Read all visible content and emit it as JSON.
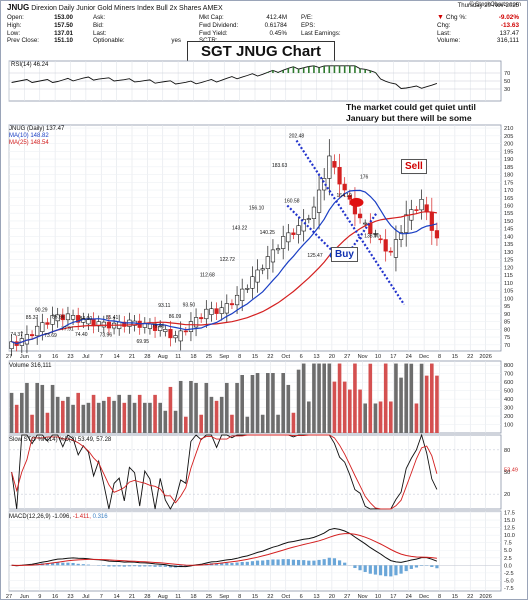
{
  "header": {
    "symbol": "JNUG",
    "description": "Direxion Daily Junior Gold Miners Index Bull 2x Shares",
    "exchange": "AMEX",
    "watermark": "© StockCharts.com",
    "col1": [
      {
        "k": "Open:",
        "v": "153.00"
      },
      {
        "k": "High:",
        "v": "157.50"
      },
      {
        "k": "Low:",
        "v": "137.01"
      },
      {
        "k": "Prev Close:",
        "v": "151.10"
      }
    ],
    "col2": [
      {
        "k": "Ask:",
        "v": ""
      },
      {
        "k": "Bid:",
        "v": ""
      },
      {
        "k": "Last:",
        "v": ""
      },
      {
        "k": "Optionable:",
        "v": "yes"
      }
    ],
    "col3": [
      {
        "k": "Mkt Cap:",
        "v": "412.4M"
      },
      {
        "k": "Fwd Dividend:",
        "v": "0.61784"
      },
      {
        "k": "Fwd Yield:",
        "v": "0.45%"
      },
      {
        "k": "SCTR:",
        "v": ""
      }
    ],
    "col4": [
      {
        "k": "P/E:",
        "v": ""
      },
      {
        "k": "EPS:",
        "v": ""
      },
      {
        "k": "Last Earnings:",
        "v": ""
      }
    ],
    "quote": {
      "date": "Thursday 20-Nov-2025",
      "rows": [
        {
          "k": "Chg %:",
          "v": "-9.02%"
        },
        {
          "k": "Chg:",
          "v": "-13.63"
        },
        {
          "k": "Last:",
          "v": "137.47"
        },
        {
          "k": "Volume:",
          "v": "316,111"
        }
      ]
    }
  },
  "title_box": "SGT JNUG Chart",
  "annotation": "The market could get quiet until January but there will be some good trading opportunities.",
  "callouts": {
    "sell": "Sell",
    "buy": "Buy"
  },
  "panel_labels": {
    "rsi": "RSI(14) 46.24",
    "price": "JNUG (Daily) 137.47",
    "ma10": "MA(10) 148.82",
    "ma25": "MA(25) 148.54",
    "volume": "Volume 316,111",
    "sto": "Slow STO %K(14) %D(3) 53.49, 57.28",
    "macd_prefix": "MACD(12,26,9) -1.096,",
    "macd_signal": "-1.411,",
    "macd_hist": "0.316"
  },
  "colors": {
    "up": "#1a1a1a",
    "down": "#d42020",
    "ma10": "#1a3fc4",
    "ma25": "#d42020",
    "trend": "#2233cc",
    "rsi_fill": "#2f7a2f"
  },
  "chart_data": {
    "type": "candlestick",
    "symbol": "JNUG",
    "x_labels": [
      "27",
      "Jun",
      "9",
      "16",
      "23",
      "Jul",
      "7",
      "14",
      "21",
      "28",
      "Aug",
      "11",
      "18",
      "25",
      "Sep",
      "8",
      "15",
      "22",
      "Oct",
      "6",
      "13",
      "20",
      "27",
      "Nov",
      "10",
      "17",
      "24",
      "Dec",
      "8",
      "15",
      "22",
      "2026"
    ],
    "price_ticks": [
      210,
      205,
      200,
      195,
      190,
      185,
      180,
      175,
      170,
      165,
      160,
      155,
      150,
      145,
      140,
      135,
      130,
      125,
      120,
      115,
      110,
      105,
      100,
      95,
      90,
      85,
      80,
      75,
      70
    ],
    "ylim": [
      66,
      212
    ],
    "close_weekly": [
      72,
      80,
      87,
      88,
      85,
      83,
      82,
      84,
      82,
      80,
      74,
      83,
      91,
      92,
      100,
      112,
      125,
      138,
      145,
      157,
      190,
      168,
      150,
      140,
      128,
      152,
      162,
      137
    ],
    "price_labels": [
      {
        "t": "74.37",
        "x": 0,
        "y": 74.37
      },
      {
        "t": "85.37",
        "x": 1,
        "y": 85.37
      },
      {
        "t": "90.29",
        "x": 1.6,
        "y": 90.29
      },
      {
        "t": "85.66",
        "x": 2.7,
        "y": 85.66
      },
      {
        "t": "77.91",
        "x": 3.3,
        "y": 77.91
      },
      {
        "t": "84.60",
        "x": 4.5,
        "y": 84.6
      },
      {
        "t": "85.41",
        "x": 6.2,
        "y": 85.41
      },
      {
        "t": "73.69",
        "x": 2.2,
        "y": 73.69
      },
      {
        "t": "74.40",
        "x": 4.2,
        "y": 74.4
      },
      {
        "t": "73.96",
        "x": 5.8,
        "y": 73.96
      },
      {
        "t": "69.95",
        "x": 8.2,
        "y": 69.95
      },
      {
        "t": "79.96",
        "x": 9.2,
        "y": 79.96
      },
      {
        "t": "86.09",
        "x": 10.3,
        "y": 86.09
      },
      {
        "t": "93.11",
        "x": 9.6,
        "y": 93.11
      },
      {
        "t": "93.50",
        "x": 11.2,
        "y": 93.5
      },
      {
        "t": "112.68",
        "x": 12.4,
        "y": 112.68
      },
      {
        "t": "122.72",
        "x": 13.7,
        "y": 122.72
      },
      {
        "t": "143.22",
        "x": 14.5,
        "y": 143.22
      },
      {
        "t": "156.10",
        "x": 15.6,
        "y": 156.1
      },
      {
        "t": "140.25",
        "x": 16.3,
        "y": 140.25
      },
      {
        "t": "183.63",
        "x": 17.1,
        "y": 183.63
      },
      {
        "t": "202.48",
        "x": 18.2,
        "y": 202.48
      },
      {
        "t": "160.58",
        "x": 17.9,
        "y": 160.58
      },
      {
        "t": "125.47",
        "x": 19.4,
        "y": 125.47
      },
      {
        "t": "164.19",
        "x": 21.3,
        "y": 164.19
      },
      {
        "t": "176",
        "x": 22.6,
        "y": 176
      },
      {
        "t": "138.00",
        "x": 23.1,
        "y": 138
      }
    ],
    "volume_ticks": [
      800,
      700,
      600,
      500,
      400,
      300,
      200,
      100
    ],
    "rsi_ticks": [
      70,
      50,
      30
    ],
    "sto_ticks": [
      80,
      53.49,
      50,
      20
    ],
    "macd_ticks": [
      17.5,
      15.0,
      12.5,
      10.0,
      7.5,
      5.0,
      2.5,
      0.0,
      -2.5,
      -5.0,
      -7.5
    ],
    "rsi": {
      "value": 46.24
    },
    "volume": {
      "last": 316111
    },
    "slow_sto": {
      "k": 53.49,
      "d": 57.28
    },
    "macd": {
      "macd": -1.096,
      "signal": -1.411,
      "hist": 0.316
    }
  }
}
